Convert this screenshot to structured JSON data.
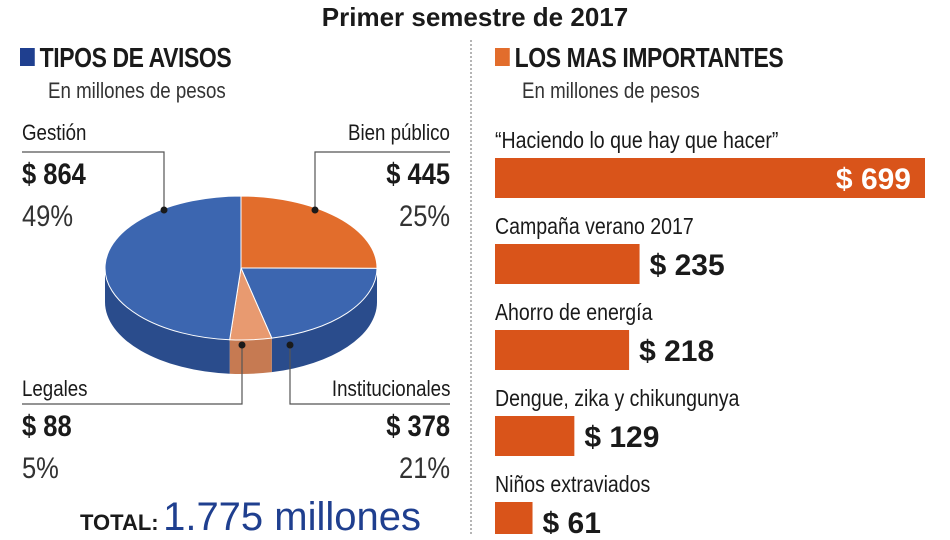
{
  "page_title": "Primer semestre de 2017",
  "left_panel": {
    "title": "TIPOS DE AVISOS",
    "subtitle": "En millones de pesos",
    "total_label": "TOTAL:",
    "total_value": "1.775 millones"
  },
  "right_panel": {
    "title": "LOS MAS IMPORTANTES",
    "subtitle": "En millones de pesos"
  },
  "colors": {
    "blue": "#3c66b0",
    "orange": "#e26d2c",
    "tan": "#e89a70",
    "bar": "#d9541a"
  },
  "chart_data": [
    {
      "type": "pie",
      "title": "TIPOS DE AVISOS",
      "subtitle": "En millones de pesos",
      "slices": [
        {
          "name": "Gestión",
          "value": 864,
          "amount": "$ 864",
          "percent": "49%"
        },
        {
          "name": "Bien público",
          "value": 445,
          "amount": "$ 445",
          "percent": "25%"
        },
        {
          "name": "Institucionales",
          "value": 378,
          "amount": "$ 378",
          "percent": "21%"
        },
        {
          "name": "Legales",
          "value": 88,
          "amount": "$ 88",
          "percent": "5%"
        }
      ]
    },
    {
      "type": "bar",
      "orientation": "horizontal",
      "title": "LOS MAS IMPORTANTES",
      "subtitle": "En millones de pesos",
      "categories": [
        "“Haciendo lo que hay que hacer”",
        "Campaña verano 2017",
        "Ahorro de energía",
        "Dengue, zika y chikungunya",
        "Niños extraviados"
      ],
      "values": [
        699,
        235,
        218,
        129,
        61
      ],
      "value_labels": [
        "$ 699",
        "$ 235",
        "$ 218",
        "$ 129",
        "$ 61"
      ]
    }
  ]
}
